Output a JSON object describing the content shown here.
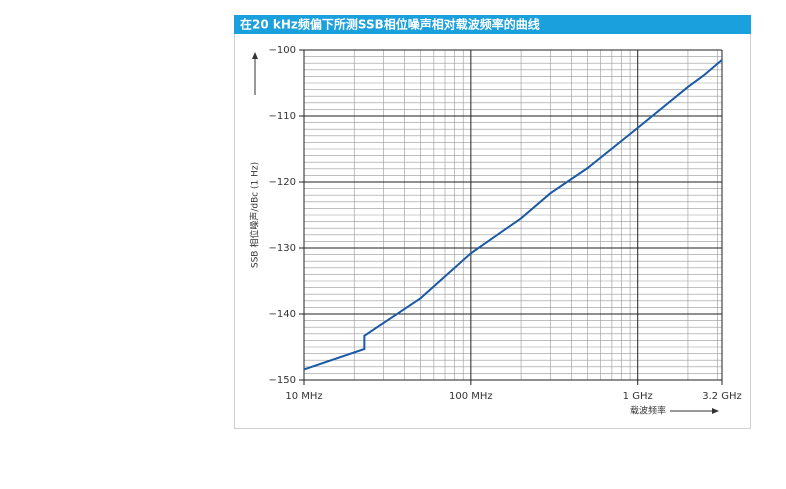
{
  "chart_data": {
    "type": "line",
    "title": "在20 kHz频偏下所测SSB相位噪声相对载波频率的曲线",
    "xlabel": "载波频率",
    "ylabel": "SSB 相位噪声/dBc (1 Hz)",
    "xscale": "log",
    "grid": true,
    "x": [
      10,
      23,
      23,
      50,
      100,
      200,
      300,
      500,
      1000,
      2000,
      2500,
      3200
    ],
    "series": [
      {
        "name": "SSB phase noise",
        "color": "#1a5aa6",
        "values": [
          -148.4,
          -145.3,
          -143.3,
          -137.6,
          -130.8,
          -125.5,
          -121.7,
          -117.9,
          -111.8,
          -105.6,
          -103.8,
          -101.5
        ]
      }
    ],
    "xlim": [
      10,
      3200
    ],
    "ylim": [
      -150,
      -100
    ],
    "xticks": [
      {
        "value": 10,
        "label": "10 MHz"
      },
      {
        "value": 100,
        "label": "100 MHz"
      },
      {
        "value": 1000,
        "label": "1 GHz"
      },
      {
        "value": 3200,
        "label": "3.2 GHz"
      }
    ],
    "yticks": [
      {
        "value": -150,
        "label": "−150"
      },
      {
        "value": -140,
        "label": "−140"
      },
      {
        "value": -130,
        "label": "−130"
      },
      {
        "value": -120,
        "label": "−120"
      },
      {
        "value": -110,
        "label": "−110"
      },
      {
        "value": -100,
        "label": "−100"
      }
    ],
    "xminor": [
      20,
      30,
      40,
      50,
      60,
      70,
      80,
      90,
      200,
      300,
      400,
      500,
      600,
      700,
      800,
      900,
      2000,
      3000
    ],
    "yminor": [
      -149,
      -148,
      -147,
      -146,
      -145,
      -144,
      -143,
      -142,
      -141,
      -139,
      -138,
      -137,
      -136,
      -135,
      -134,
      -133,
      -132,
      -131,
      -129,
      -128,
      -127,
      -126,
      -125,
      -124,
      -123,
      -122,
      -121,
      -119,
      -118,
      -117,
      -116,
      -115,
      -114,
      -113,
      -112,
      -111,
      -109,
      -108,
      -107,
      -106,
      -105,
      -104,
      -103,
      -102,
      -101
    ]
  }
}
